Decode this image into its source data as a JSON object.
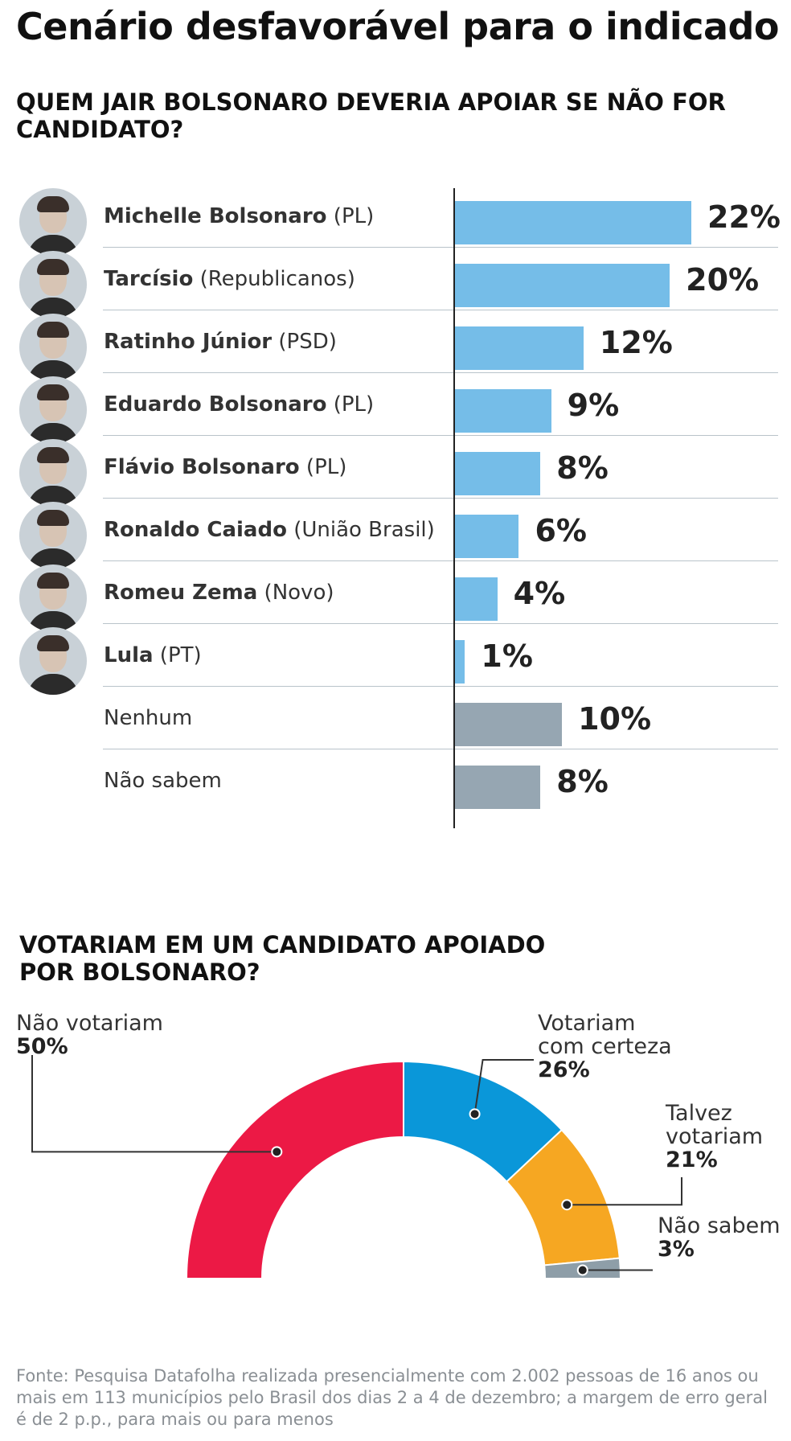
{
  "title": "Cenário desfavorável para o indicado",
  "chart_data": [
    {
      "type": "bar",
      "orientation": "horizontal",
      "title": "QUEM JAIR BOLSONARO DEVERIA APOIAR SE NÃO FOR CANDIDATO?",
      "unit": "%",
      "categories": [
        {
          "name": "Michelle Bolsonaro",
          "party": "(PL)",
          "value": 22,
          "value_label": "22%",
          "color": "#75bde8",
          "photo": true
        },
        {
          "name": "Tarcísio",
          "party": "(Republicanos)",
          "value": 20,
          "value_label": "20%",
          "color": "#75bde8",
          "photo": true
        },
        {
          "name": "Ratinho Júnior",
          "party": "(PSD)",
          "value": 12,
          "value_label": "12%",
          "color": "#75bde8",
          "photo": true
        },
        {
          "name": "Eduardo Bolsonaro",
          "party": "(PL)",
          "value": 9,
          "value_label": "9%",
          "color": "#75bde8",
          "photo": true
        },
        {
          "name": "Flávio Bolsonaro",
          "party": "(PL)",
          "value": 8,
          "value_label": "8%",
          "color": "#75bde8",
          "photo": true
        },
        {
          "name": "Ronaldo Caiado",
          "party": "(União Brasil)",
          "value": 6,
          "value_label": "6%",
          "color": "#75bde8",
          "photo": true
        },
        {
          "name": "Romeu Zema",
          "party": "(Novo)",
          "value": 4,
          "value_label": "4%",
          "color": "#75bde8",
          "photo": true
        },
        {
          "name": "Lula",
          "party": "(PT)",
          "value": 1,
          "value_label": "1%",
          "color": "#75bde8",
          "photo": true
        },
        {
          "name": "Nenhum",
          "party": "",
          "value": 10,
          "value_label": "10%",
          "color": "#96a6b2",
          "photo": false
        },
        {
          "name": "Não sabem",
          "party": "",
          "value": 8,
          "value_label": "8%",
          "color": "#96a6b2",
          "photo": false
        }
      ],
      "xlim": [
        0,
        22
      ]
    },
    {
      "type": "pie",
      "variant": "semicircle-donut",
      "title": "VOTARIAM EM UM CANDIDATO APOIADO POR BOLSONARO?",
      "unit": "%",
      "slices": [
        {
          "label": "Não votariam",
          "value": 50,
          "value_label": "50%",
          "color": "#ec1945"
        },
        {
          "label": "Votariam com certeza",
          "value": 26,
          "value_label": "26%",
          "color": "#0a97d9"
        },
        {
          "label": "Talvez votariam",
          "value": 21,
          "value_label": "21%",
          "color": "#f6a722"
        },
        {
          "label": "Não sabem",
          "value": 3,
          "value_label": "3%",
          "color": "#8e9ea8"
        }
      ]
    }
  ],
  "source": "Fonte: Pesquisa Datafolha realizada presencialmente com 2.002 pessoas de 16 anos ou mais em 113 municípios pelo Brasil dos dias 2 a 4 de dezembro; a margem de erro geral é de 2 p.p., para mais ou para menos"
}
